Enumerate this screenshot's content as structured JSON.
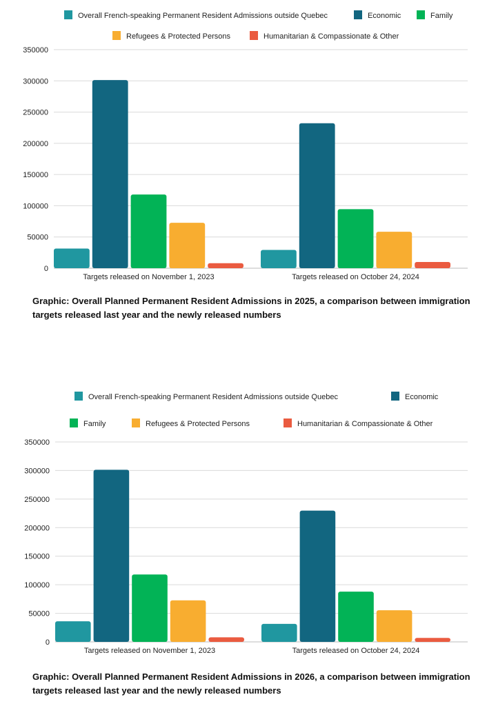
{
  "colors": {
    "french": "#2097a0",
    "economic": "#126680",
    "family": "#02b356",
    "refugees": "#f8ad30",
    "humanitarian": "#ea5b40",
    "grid": "#d9d9d9",
    "axis": "#bbbbbb"
  },
  "chart_data": [
    {
      "type": "bar",
      "title": "Graphic: Overall Planned Permanent Resident Admissions in 2025, a comparison between immigration targets released last year and the newly released numbers",
      "categories": [
        "Targets released on November 1, 2023",
        "Targets released on October 24, 2024"
      ],
      "series": [
        {
          "name": "Overall French-speaking Permanent Resident Admissions outside Quebec",
          "key": "french",
          "values": [
            31500,
            29325
          ]
        },
        {
          "name": "Economic",
          "key": "economic",
          "values": [
            301250,
            232150
          ]
        },
        {
          "name": "Family",
          "key": "family",
          "values": [
            118000,
            94500
          ]
        },
        {
          "name": "Refugees & Protected Persons",
          "key": "refugees",
          "values": [
            72750,
            58350
          ]
        },
        {
          "name": "Humanitarian & Compassionate & Other",
          "key": "humanitarian",
          "values": [
            8000,
            10000
          ]
        }
      ],
      "yticks": [
        "0",
        "50000",
        "100000",
        "150000",
        "200000",
        "250000",
        "300000",
        "350000"
      ],
      "ylim": [
        0,
        350000
      ],
      "grid": true,
      "legend": "top"
    },
    {
      "type": "bar",
      "title": "Graphic: Overall Planned Permanent Resident Admissions in 2026, a comparison between immigration targets released last year and the newly released numbers",
      "categories": [
        "Targets released on November 1, 2023",
        "Targets released on October 24, 2024"
      ],
      "series": [
        {
          "name": "Overall French-speaking Permanent Resident Admissions outside Quebec",
          "key": "french",
          "values": [
            36000,
            31500
          ]
        },
        {
          "name": "Economic",
          "key": "economic",
          "values": [
            301250,
            229750
          ]
        },
        {
          "name": "Family",
          "key": "family",
          "values": [
            118000,
            88000
          ]
        },
        {
          "name": "Refugees & Protected Persons",
          "key": "refugees",
          "values": [
            72750,
            55350
          ]
        },
        {
          "name": "Humanitarian & Compassionate & Other",
          "key": "humanitarian",
          "values": [
            8000,
            7000
          ]
        }
      ],
      "yticks": [
        "0",
        "50000",
        "100000",
        "150000",
        "200000",
        "250000",
        "300000",
        "350000"
      ],
      "ylim": [
        0,
        350000
      ],
      "grid": true,
      "legend": "top"
    }
  ]
}
